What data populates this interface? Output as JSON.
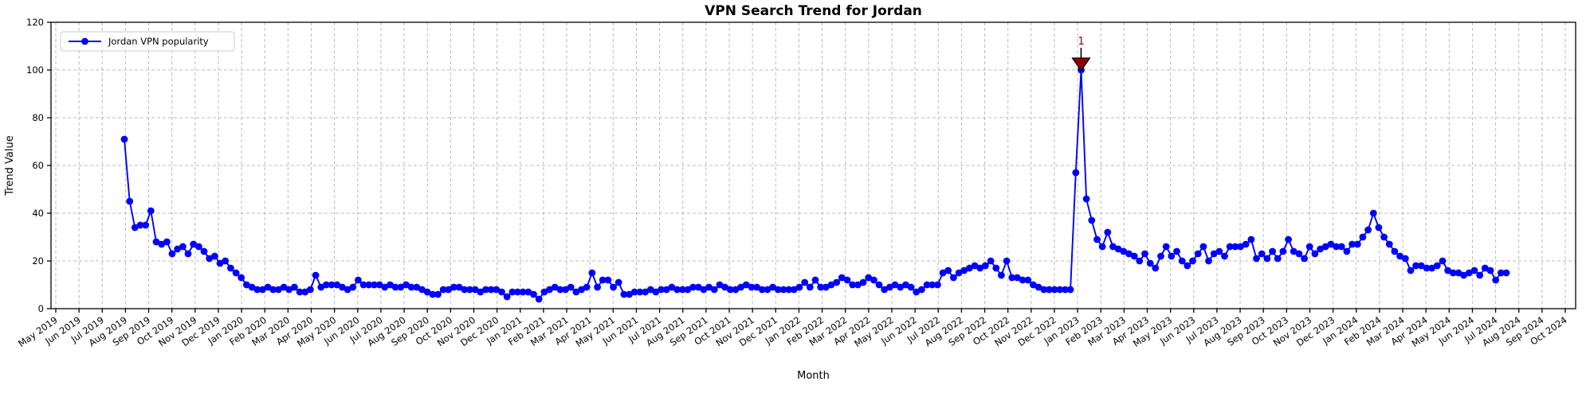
{
  "figure": {
    "title": "VPN Search Trend for Jordan",
    "xlabel": "Month",
    "ylabel": "Trend Value"
  },
  "legend": {
    "label": "Jordan VPN popularity",
    "position": "upper left"
  },
  "annotation": {
    "text": "1",
    "marker": "triangle-down",
    "color": "#8b0000",
    "marks": "series maximum (value 100, mid-Jan 2023)"
  },
  "colors": {
    "line": "#0000ff",
    "marker": "#0000ff",
    "grid": "#bcbcbc",
    "axis": "#000000",
    "annotation": "#8b0000",
    "background": "#ffffff",
    "legend_border": "#cccccc"
  },
  "chart_data": {
    "type": "line",
    "title": "VPN Search Trend for Jordan",
    "xlabel": "Month",
    "ylabel": "Trend Value",
    "ylim": [
      0,
      120
    ],
    "yticks": [
      0,
      20,
      40,
      60,
      80,
      100,
      120
    ],
    "grid": true,
    "legend_position": "upper left",
    "marker": "o",
    "cadence": "weekly, first point ~Aug 2019, last point ~late Jul 2024",
    "xticklabels": [
      "May 2019",
      "Jun 2019",
      "Jul 2019",
      "Aug 2019",
      "Sep 2019",
      "Oct 2019",
      "Nov 2019",
      "Dec 2019",
      "Jan 2020",
      "Feb 2020",
      "Mar 2020",
      "Apr 2020",
      "May 2020",
      "Jun 2020",
      "Jul 2020",
      "Aug 2020",
      "Sep 2020",
      "Oct 2020",
      "Nov 2020",
      "Dec 2020",
      "Jan 2021",
      "Feb 2021",
      "Mar 2021",
      "Apr 2021",
      "May 2021",
      "Jun 2021",
      "Jul 2021",
      "Aug 2021",
      "Sep 2021",
      "Oct 2021",
      "Nov 2021",
      "Dec 2021",
      "Jan 2022",
      "Feb 2022",
      "Mar 2022",
      "Apr 2022",
      "May 2022",
      "Jun 2022",
      "Jul 2022",
      "Aug 2022",
      "Sep 2022",
      "Oct 2022",
      "Nov 2022",
      "Dec 2022",
      "Jan 2023",
      "Feb 2023",
      "Mar 2023",
      "Apr 2023",
      "May 2023",
      "Jun 2023",
      "Jul 2023",
      "Aug 2023",
      "Sep 2023",
      "Oct 2023",
      "Nov 2023",
      "Dec 2023",
      "Jan 2024",
      "Feb 2024",
      "Mar 2024",
      "Apr 2024",
      "May 2024",
      "Jun 2024",
      "Jul 2024",
      "Aug 2024",
      "Sep 2024",
      "Oct 2024"
    ],
    "series": [
      {
        "name": "Jordan VPN popularity",
        "values": [
          71,
          45,
          34,
          35,
          35,
          41,
          28,
          27,
          28,
          23,
          25,
          26,
          23,
          27,
          26,
          24,
          21,
          22,
          19,
          20,
          17,
          15,
          13,
          10,
          9,
          8,
          8,
          9,
          8,
          8,
          9,
          8,
          9,
          7,
          7,
          8,
          14,
          9,
          10,
          10,
          10,
          9,
          8,
          9,
          12,
          10,
          10,
          10,
          10,
          9,
          10,
          9,
          9,
          10,
          9,
          9,
          8,
          7,
          6,
          6,
          8,
          8,
          9,
          9,
          8,
          8,
          8,
          7,
          8,
          8,
          8,
          7,
          5,
          7,
          7,
          7,
          7,
          6,
          4,
          7,
          8,
          9,
          8,
          8,
          9,
          7,
          8,
          9,
          15,
          9,
          12,
          12,
          9,
          11,
          6,
          6,
          7,
          7,
          7,
          8,
          7,
          8,
          8,
          9,
          8,
          8,
          8,
          9,
          9,
          8,
          9,
          8,
          10,
          9,
          8,
          8,
          9,
          10,
          9,
          9,
          8,
          8,
          9,
          8,
          8,
          8,
          8,
          9,
          11,
          9,
          12,
          9,
          9,
          10,
          11,
          13,
          12,
          10,
          10,
          11,
          13,
          12,
          10,
          8,
          9,
          10,
          9,
          10,
          9,
          7,
          8,
          10,
          10,
          10,
          15,
          16,
          13,
          15,
          16,
          17,
          18,
          17,
          18,
          20,
          17,
          14,
          20,
          13,
          13,
          12,
          12,
          10,
          9,
          8,
          8,
          8,
          8,
          8,
          8,
          57,
          100,
          46,
          37,
          29,
          26,
          32,
          26,
          25,
          24,
          23,
          22,
          20,
          23,
          19,
          17,
          22,
          26,
          22,
          24,
          20,
          18,
          20,
          23,
          26,
          20,
          23,
          24,
          22,
          26,
          26,
          26,
          27,
          29,
          21,
          23,
          21,
          24,
          21,
          24,
          29,
          24,
          23,
          21,
          26,
          23,
          25,
          26,
          27,
          26,
          26,
          24,
          27,
          27,
          30,
          33,
          40,
          34,
          30,
          27,
          24,
          22,
          21,
          16,
          18,
          18,
          17,
          17,
          18,
          20,
          16,
          15,
          15,
          14,
          15,
          16,
          14,
          17,
          16,
          12,
          15,
          15
        ]
      }
    ],
    "annotations": [
      {
        "text": "1",
        "value": 100,
        "near_tick": "Jan 2023",
        "marker": "triangle-down",
        "color": "#8b0000"
      }
    ]
  }
}
